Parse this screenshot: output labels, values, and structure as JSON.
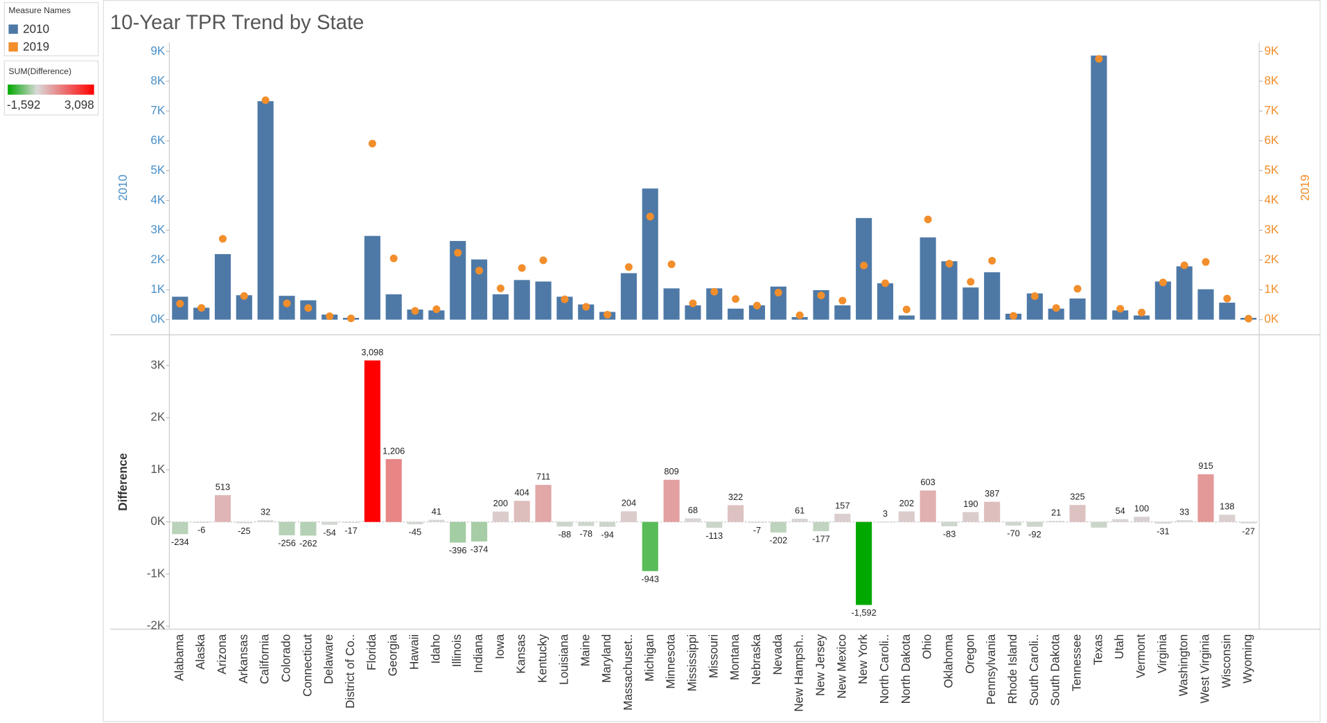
{
  "chart_data": [
    {
      "type": "combo",
      "title": "10-Year TPR Trend by State",
      "categories": [
        "Alabama",
        "Alaska",
        "Arizona",
        "Arkansas",
        "California",
        "Colorado",
        "Connecticut",
        "Delaware",
        "District of Co..",
        "Florida",
        "Georgia",
        "Hawaii",
        "Idaho",
        "Illinois",
        "Indiana",
        "Iowa",
        "Kansas",
        "Kentucky",
        "Louisiana",
        "Maine",
        "Maryland",
        "Massachuset..",
        "Michigan",
        "Minnesota",
        "Mississippi",
        "Missouri",
        "Montana",
        "Nebraska",
        "Nevada",
        "New Hampsh..",
        "New Jersey",
        "New Mexico",
        "New York",
        "North Caroli..",
        "North Dakota",
        "Ohio",
        "Oklahoma",
        "Oregon",
        "Pennsylvania",
        "Rhode Island",
        "South Caroli..",
        "South Dakota",
        "Tennessee",
        "Texas",
        "Utah",
        "Vermont",
        "Virginia",
        "Washington",
        "West Virginia",
        "Wisconsin",
        "Wyoming"
      ],
      "legend_title": "Measure Names",
      "series": [
        {
          "name": "2010",
          "color": "#4e79a7",
          "mark": "bar",
          "values": [
            770,
            400,
            2200,
            820,
            7330,
            800,
            650,
            170,
            60,
            2810,
            850,
            340,
            310,
            2640,
            2020,
            850,
            1330,
            1280,
            770,
            510,
            260,
            1560,
            4400,
            1050,
            480,
            1050,
            370,
            480,
            1110,
            85,
            990,
            480,
            3410,
            1220,
            140,
            2760,
            1960,
            1080,
            1590,
            200,
            880,
            370,
            710,
            8860,
            310,
            140,
            1280,
            1790,
            1020,
            570,
            60
          ]
        },
        {
          "name": "2019",
          "color": "#f28e2b",
          "mark": "circle",
          "axis": "y2",
          "values": [
            536,
            394,
            2713,
            795,
            7362,
            544,
            388,
            116,
            43,
            5908,
            2056,
            295,
            351,
            2244,
            1646,
            1050,
            1734,
            1991,
            682,
            432,
            166,
            1764,
            3457,
            1859,
            548,
            937,
            692,
            473,
            908,
            146,
            813,
            637,
            1818,
            1223,
            342,
            3363,
            1877,
            1270,
            1977,
            130,
            788,
            391,
            1035,
            8750,
            364,
            240,
            1249,
            1823,
            1935,
            708,
            33
          ]
        }
      ],
      "ylabel": "2010",
      "y2label": "2019",
      "ylim": [
        -340,
        9250
      ],
      "yticks": [
        {
          "value": 0,
          "label": "0K"
        },
        {
          "value": 1000,
          "label": "1K"
        },
        {
          "value": 2000,
          "label": "2K"
        },
        {
          "value": 3000,
          "label": "3K"
        },
        {
          "value": 4000,
          "label": "4K"
        },
        {
          "value": 5000,
          "label": "5K"
        },
        {
          "value": 6000,
          "label": "6K"
        },
        {
          "value": 7000,
          "label": "7K"
        },
        {
          "value": 8000,
          "label": "8K"
        },
        {
          "value": 9000,
          "label": "9K"
        }
      ],
      "y2lim": [
        -340,
        9250
      ],
      "y2ticks": [
        {
          "value": 0,
          "label": "0K"
        },
        {
          "value": 1000,
          "label": "1K"
        },
        {
          "value": 2000,
          "label": "2K"
        },
        {
          "value": 3000,
          "label": "3K"
        },
        {
          "value": 4000,
          "label": "4K"
        },
        {
          "value": 5000,
          "label": "5K"
        },
        {
          "value": 6000,
          "label": "6K"
        },
        {
          "value": 7000,
          "label": "7K"
        },
        {
          "value": 8000,
          "label": "8K"
        },
        {
          "value": 9000,
          "label": "9K"
        }
      ]
    },
    {
      "type": "bar",
      "ylabel": "Difference",
      "values": [
        -234,
        -6,
        513,
        -25,
        32,
        -256,
        -262,
        -54,
        -17,
        3098,
        1206,
        -45,
        41,
        -396,
        -374,
        200,
        404,
        711,
        -88,
        -78,
        -94,
        204,
        -943,
        809,
        68,
        -113,
        322,
        -7,
        -202,
        61,
        -177,
        157,
        -1592,
        3,
        202,
        603,
        -83,
        190,
        387,
        -70,
        -92,
        21,
        325,
        -110,
        54,
        100,
        -31,
        33,
        915,
        138,
        -27
      ],
      "value_labels": [
        "-234",
        "-6",
        "513",
        "-25",
        "32",
        "-256",
        "-262",
        "-54",
        "-17",
        "3,098",
        "1,206",
        "-45",
        "41",
        "-396",
        "-374",
        "200",
        "404",
        "711",
        "-88",
        "-78",
        "-94",
        "204",
        "-943",
        "809",
        "68",
        "-113",
        "322",
        "-7",
        "-202",
        "61",
        "-177",
        "157",
        "-1,592",
        "3",
        "202",
        "603",
        "-83",
        "190",
        "387",
        "-70",
        "-92",
        "21",
        "325",
        null,
        "54",
        "100",
        "-31",
        "33",
        "915",
        "138",
        "-27"
      ],
      "ylim": [
        -2040,
        3540
      ],
      "yticks": [
        {
          "value": -2000,
          "label": "-2K"
        },
        {
          "value": -1000,
          "label": "-1K"
        },
        {
          "value": 0,
          "label": "0K"
        },
        {
          "value": 1000,
          "label": "1K"
        },
        {
          "value": 2000,
          "label": "2K"
        },
        {
          "value": 3000,
          "label": "3K"
        }
      ],
      "color_scale": {
        "title": "SUM(Difference)",
        "colors": [
          "#00a800",
          "#d9d9d9",
          "#ff0000"
        ],
        "domain": [
          {
            "value": -1592,
            "label": "-1,592"
          },
          {
            "value": 3098,
            "label": "3,098"
          }
        ]
      }
    }
  ]
}
